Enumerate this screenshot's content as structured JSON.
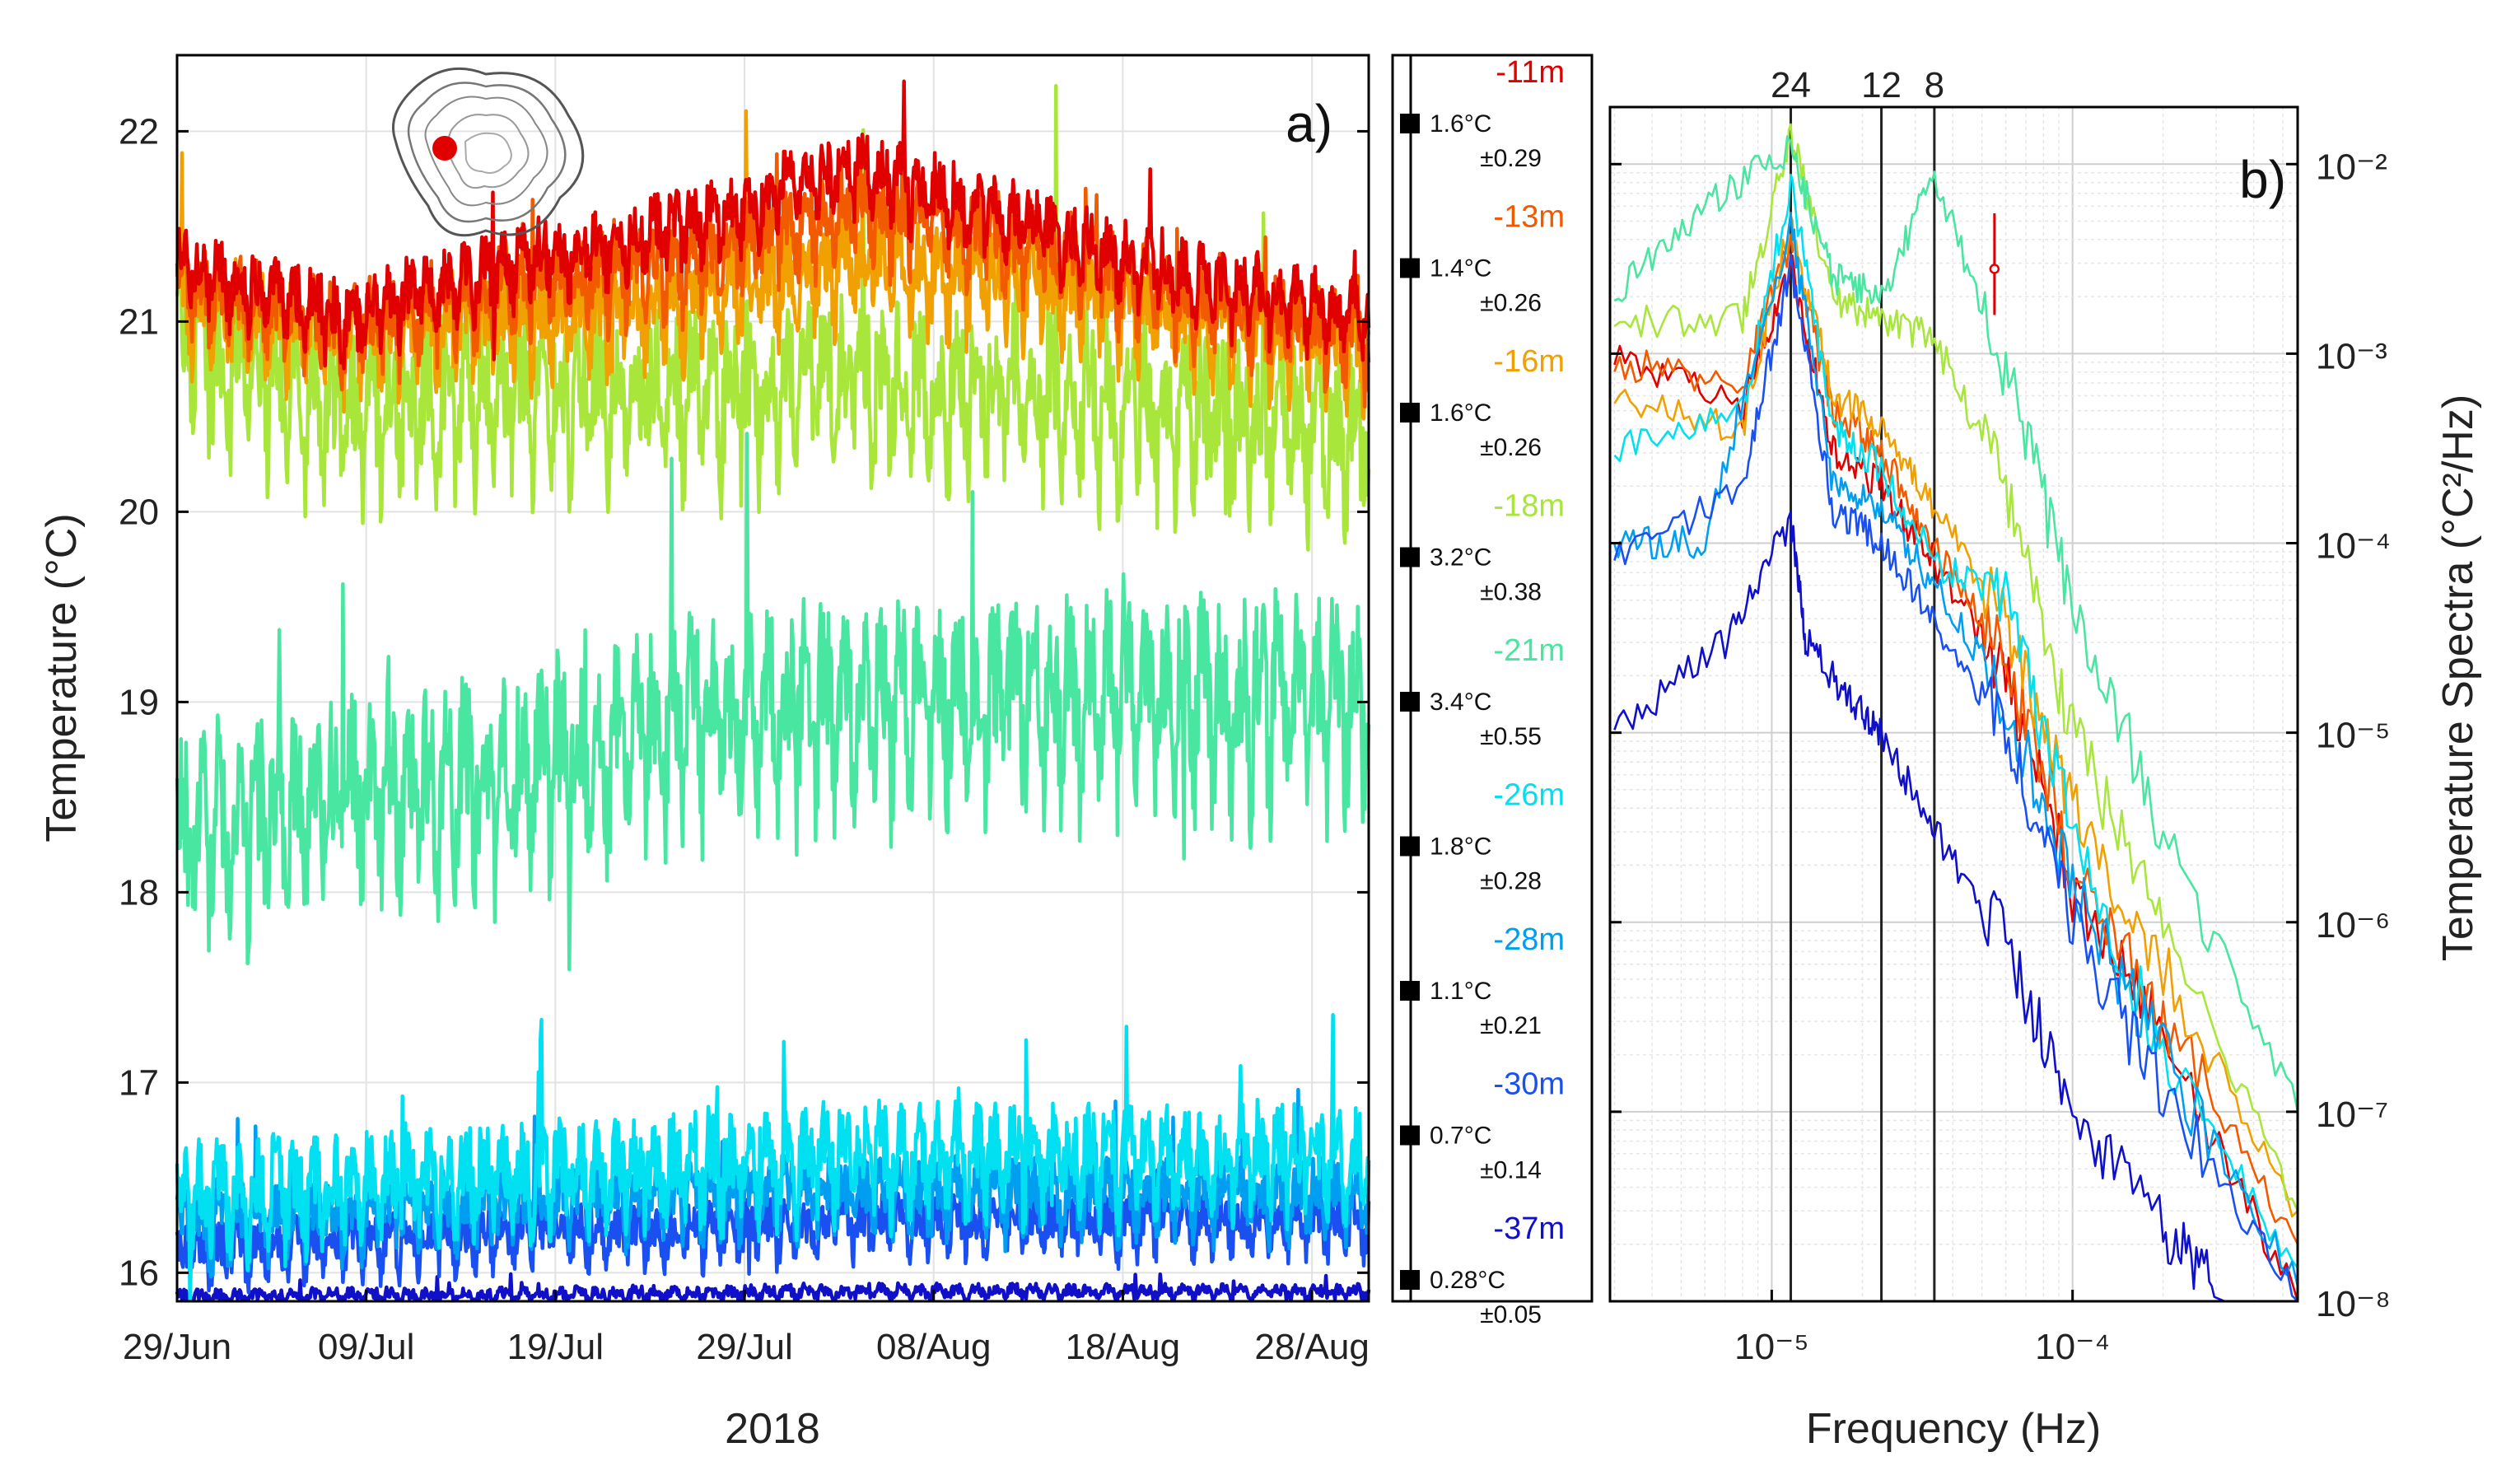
{
  "chart_data": [
    {
      "panel": "a)",
      "type": "line",
      "title": "",
      "xlabel": "2018",
      "ylabel": "Temperature (°C)",
      "ylim": [
        15.85,
        22.4
      ],
      "xlim_days": [
        0,
        63
      ],
      "x_tick_labels": [
        "29/Jun",
        "09/Jul",
        "19/Jul",
        "29/Jul",
        "08/Aug",
        "18/Aug",
        "28/Aug"
      ],
      "x_tick_days": [
        0,
        10,
        20,
        30,
        40,
        50,
        60
      ],
      "y_tick_labels": [
        "16",
        "17",
        "18",
        "19",
        "20",
        "21",
        "22"
      ],
      "y_tick_values": [
        16,
        17,
        18,
        19,
        20,
        21,
        22
      ],
      "grid": true,
      "series": [
        {
          "name": "-11m",
          "color": "#e00000",
          "baseline": [
            21.3,
            21.0,
            21.3,
            21.5,
            21.8,
            21.5,
            21.2,
            21.0
          ],
          "amp": 0.25,
          "std": "1.6°C",
          "err": "±0.29"
        },
        {
          "name": "-13m",
          "color": "#f25a00",
          "baseline": [
            21.2,
            20.95,
            21.2,
            21.3,
            21.6,
            21.4,
            21.1,
            20.9
          ],
          "amp": 0.3,
          "std": "1.4°C",
          "err": "±0.26"
        },
        {
          "name": "-16m",
          "color": "#f0a000",
          "baseline": [
            21.1,
            20.9,
            21.0,
            21.1,
            21.3,
            21.2,
            21.0,
            20.85
          ],
          "amp": 0.35,
          "std": "1.6°C",
          "err": "±0.26"
        },
        {
          "name": "-18m",
          "color": "#a8e63c",
          "baseline": [
            20.9,
            20.5,
            20.6,
            20.6,
            20.7,
            20.6,
            20.5,
            20.4
          ],
          "amp": 0.55,
          "std": "3.2°C",
          "err": "±0.38"
        },
        {
          "name": "-21m",
          "color": "#48e6a0",
          "baseline": [
            18.3,
            18.5,
            18.6,
            18.9,
            19.0,
            19.0,
            19.0,
            19.0
          ],
          "amp": 0.65,
          "std": "3.4°C",
          "err": "±0.55"
        },
        {
          "name": "-26m",
          "color": "#00e0f0",
          "baseline": [
            16.4,
            16.45,
            16.5,
            16.55,
            16.6,
            16.6,
            16.6,
            16.6
          ],
          "amp": 0.35,
          "std": "1.8°C",
          "err": "±0.28"
        },
        {
          "name": "-28m",
          "color": "#009ef0",
          "baseline": [
            16.25,
            16.3,
            16.35,
            16.4,
            16.4,
            16.4,
            16.4,
            16.4
          ],
          "amp": 0.25,
          "std": "1.1°C",
          "err": "±0.21"
        },
        {
          "name": "-30m",
          "color": "#1a50f0",
          "baseline": [
            16.1,
            16.15,
            16.2,
            16.2,
            16.25,
            16.25,
            16.25,
            16.25
          ],
          "amp": 0.2,
          "std": "0.7°C",
          "err": "±0.14"
        },
        {
          "name": "-37m",
          "color": "#1010c8",
          "baseline": [
            15.87,
            15.88,
            15.88,
            15.89,
            15.9,
            15.9,
            15.9,
            15.9
          ],
          "amp": 0.05,
          "std": "0.28°C",
          "err": "±0.05"
        }
      ],
      "legend": {
        "depths": [
          "-11m",
          "-13m",
          "-16m",
          "-18m",
          "-21m",
          "-26m",
          "-28m",
          "-30m",
          "-37m"
        ],
        "std_values": [
          "1.6°C",
          "1.4°C",
          "1.6°C",
          "3.2°C",
          "3.4°C",
          "1.8°C",
          "1.1°C",
          "0.7°C",
          "0.28°C"
        ],
        "uncertainties": [
          "±0.29",
          "±0.26",
          "±0.26",
          "±0.38",
          "±0.55",
          "±0.28",
          "±0.21",
          "±0.14",
          "±0.05"
        ]
      }
    },
    {
      "panel": "b)",
      "type": "line",
      "xscale": "log",
      "yscale": "log",
      "xlabel": "Frequency (Hz)",
      "ylabel": "Temperature Spectra (°C²/Hz)",
      "xlim": [
        2.9e-06,
        0.00056
      ],
      "ylim": [
        1e-08,
        0.02
      ],
      "x_tick_labels": [
        "10⁻⁵",
        "10⁻⁴"
      ],
      "x_tick_values": [
        1e-05,
        0.0001
      ],
      "y_tick_labels": [
        "10⁻²",
        "10⁻³",
        "10⁻⁴",
        "10⁻⁵",
        "10⁻⁶",
        "10⁻⁷",
        "10⁻⁸"
      ],
      "y_tick_values": [
        0.01,
        0.001,
        0.0001,
        1e-05,
        1e-06,
        1e-07,
        1e-08
      ],
      "grid": true,
      "period_markers": [
        {
          "label": "24",
          "hours": 24,
          "freq": 1.157e-05
        },
        {
          "label": "12",
          "hours": 12,
          "freq": 2.315e-05
        },
        {
          "label": "8",
          "hours": 8,
          "freq": 3.472e-05
        }
      ],
      "confidence_bar": {
        "freq": 5.5e-05,
        "center": 0.0028,
        "low": 0.0016,
        "high": 0.0055,
        "color": "#e00000"
      },
      "series": [
        {
          "name": "-11m",
          "color": "#e00000",
          "points": [
            [
              3e-06,
              0.001
            ],
            [
              8e-06,
              0.0005
            ],
            [
              1.157e-05,
              0.003
            ],
            [
              1.6e-05,
              0.0003
            ],
            [
              2.315e-05,
              0.0002
            ],
            [
              3.472e-05,
              8e-05
            ],
            [
              6e-05,
              2e-05
            ],
            [
              0.0001,
              1.5e-06
            ],
            [
              0.0002,
              2.5e-07
            ],
            [
              0.00056,
              1e-08
            ]
          ]
        },
        {
          "name": "-13m",
          "color": "#f25a00",
          "points": [
            [
              3e-06,
              0.0009
            ],
            [
              8e-06,
              0.0007
            ],
            [
              1.157e-05,
              0.004
            ],
            [
              1.6e-05,
              0.0005
            ],
            [
              2.315e-05,
              0.0003
            ],
            [
              3.472e-05,
              0.0001
            ],
            [
              6e-05,
              2.5e-05
            ],
            [
              0.0001,
              2e-06
            ],
            [
              0.0002,
              3e-07
            ],
            [
              0.00056,
              2e-08
            ]
          ]
        },
        {
          "name": "-16m",
          "color": "#f0a000",
          "points": [
            [
              3e-06,
              0.0006
            ],
            [
              8e-06,
              0.0004
            ],
            [
              1.157e-05,
              0.005
            ],
            [
              1.6e-05,
              0.0006
            ],
            [
              2.315e-05,
              0.0004
            ],
            [
              3.472e-05,
              0.00015
            ],
            [
              6e-05,
              4e-05
            ],
            [
              0.0001,
              4e-06
            ],
            [
              0.0002,
              6e-07
            ],
            [
              0.00056,
              3e-08
            ]
          ]
        },
        {
          "name": "-18m",
          "color": "#a8e63c",
          "points": [
            [
              3e-06,
              0.0015
            ],
            [
              8e-06,
              0.0015
            ],
            [
              1.157e-05,
              0.015
            ],
            [
              1.6e-05,
              0.002
            ],
            [
              2.315e-05,
              0.0015
            ],
            [
              3.472e-05,
              0.0012
            ],
            [
              6e-05,
              0.0002
            ],
            [
              0.0001,
              1e-05
            ],
            [
              0.0002,
              1e-06
            ],
            [
              0.00056,
              3e-08
            ]
          ]
        },
        {
          "name": "-21m",
          "color": "#48e6a0",
          "points": [
            [
              3e-06,
              0.002
            ],
            [
              6e-06,
              0.006
            ],
            [
              1.157e-05,
              0.012
            ],
            [
              1.6e-05,
              0.0025
            ],
            [
              2.315e-05,
              0.002
            ],
            [
              3.472e-05,
              0.009
            ],
            [
              6e-05,
              0.0008
            ],
            [
              0.0001,
              5e-05
            ],
            [
              0.0002,
              3e-06
            ],
            [
              0.00056,
              1e-07
            ]
          ]
        },
        {
          "name": "-26m",
          "color": "#00e0f0",
          "points": [
            [
              3e-06,
              0.0003
            ],
            [
              8e-06,
              0.0005
            ],
            [
              1.157e-05,
              0.008
            ],
            [
              1.6e-05,
              0.0004
            ],
            [
              2.315e-05,
              0.00025
            ],
            [
              3.472e-05,
              8e-05
            ],
            [
              6e-05,
              5e-05
            ],
            [
              0.0001,
              3e-06
            ],
            [
              0.0002,
              2e-07
            ],
            [
              0.00056,
              1.5e-08
            ]
          ]
        },
        {
          "name": "-28m",
          "color": "#009ef0",
          "points": [
            [
              3e-06,
              0.0001
            ],
            [
              6e-06,
              0.0001
            ],
            [
              1.157e-05,
              0.005
            ],
            [
              1.6e-05,
              0.0002
            ],
            [
              2.315e-05,
              0.00015
            ],
            [
              3.472e-05,
              6e-05
            ],
            [
              6e-05,
              1.5e-05
            ],
            [
              0.0001,
              1.5e-06
            ],
            [
              0.0002,
              2e-07
            ],
            [
              0.00056,
              1.2e-08
            ]
          ]
        },
        {
          "name": "-30m",
          "color": "#1a50f0",
          "points": [
            [
              3e-06,
              8e-05
            ],
            [
              8e-06,
              0.0002
            ],
            [
              1.157e-05,
              0.003
            ],
            [
              1.6e-05,
              0.00015
            ],
            [
              2.315e-05,
              0.0001
            ],
            [
              3.472e-05,
              4e-05
            ],
            [
              6e-05,
              1e-05
            ],
            [
              0.0001,
              1e-06
            ],
            [
              0.0002,
              1.2e-07
            ],
            [
              0.00056,
              1e-08
            ]
          ]
        },
        {
          "name": "-37m",
          "color": "#1010c8",
          "points": [
            [
              3e-06,
              1e-05
            ],
            [
              7e-06,
              3e-05
            ],
            [
              1.157e-05,
              0.00013
            ],
            [
              1.3e-05,
              3e-05
            ],
            [
              1.8e-05,
              1.5e-05
            ],
            [
              2.315e-05,
              1e-05
            ],
            [
              3.472e-05,
              3e-06
            ],
            [
              6e-05,
              8e-07
            ],
            [
              0.0001,
              1e-07
            ],
            [
              0.0002,
              2.5e-08
            ],
            [
              0.00032,
              1e-08
            ]
          ]
        }
      ]
    }
  ],
  "panel_labels": {
    "a": "a)",
    "b": "b)"
  }
}
